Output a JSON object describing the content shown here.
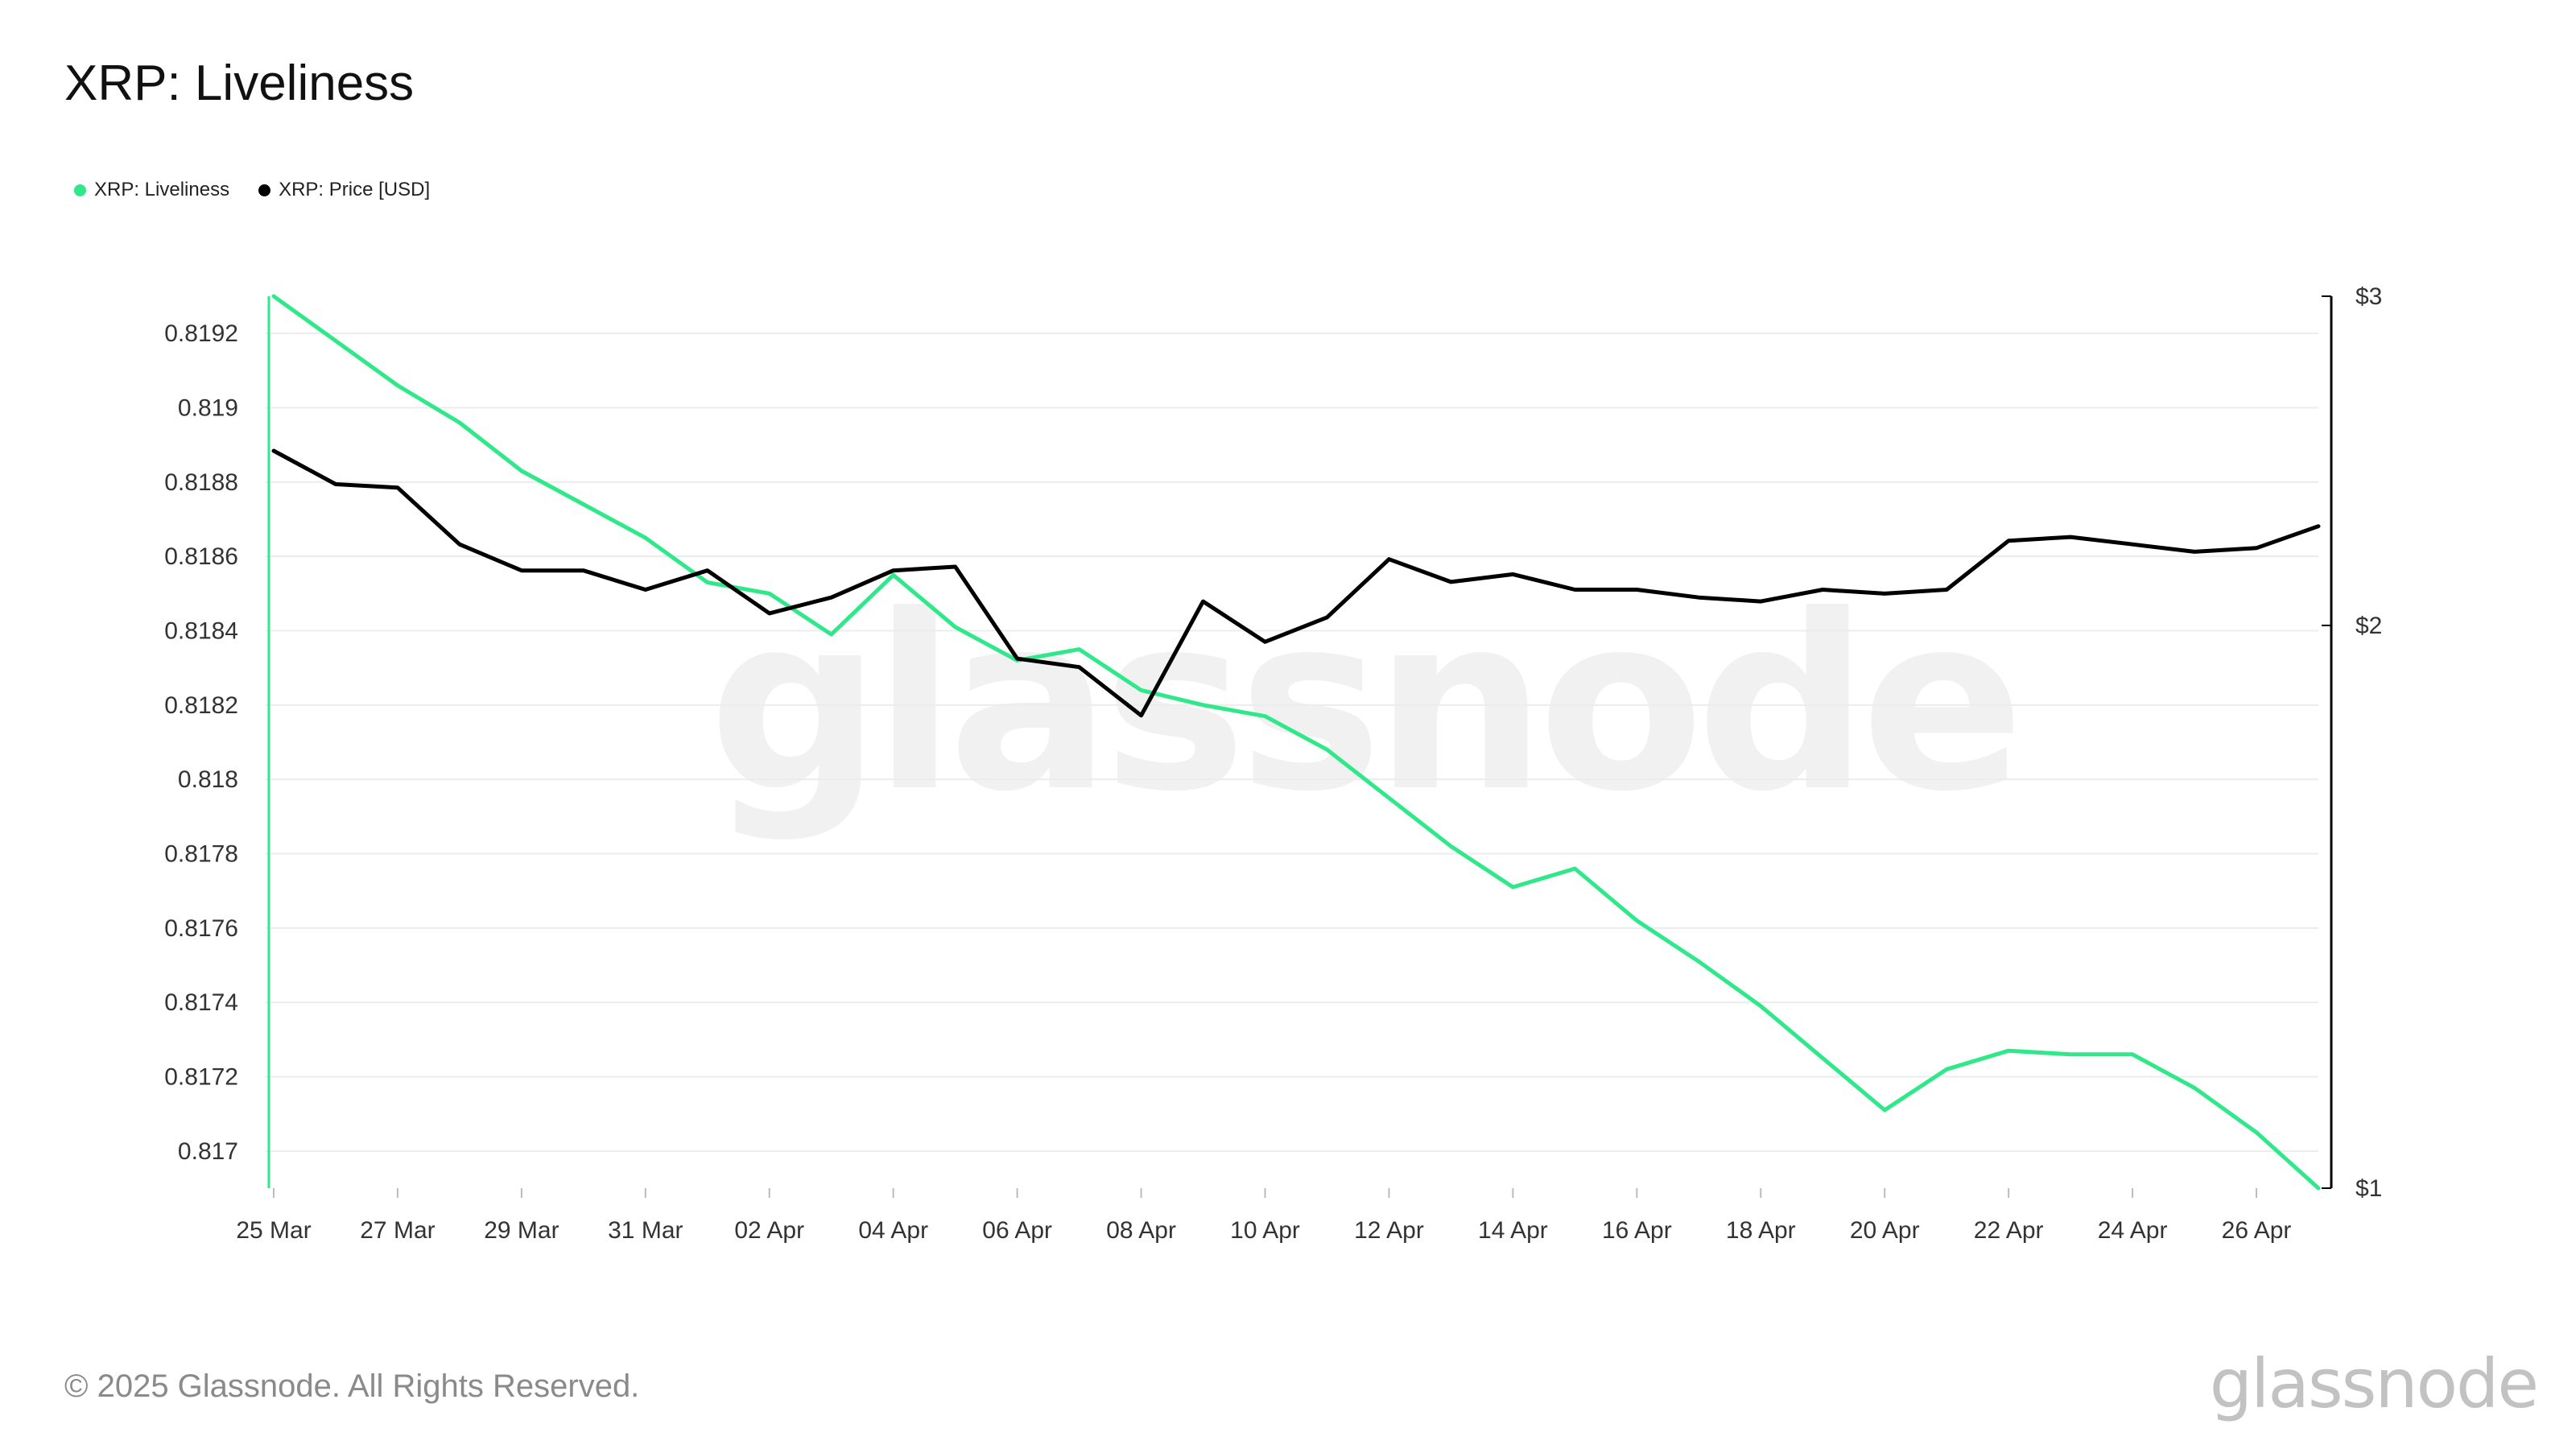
{
  "page": {
    "title": "XRP: Liveliness",
    "copyright": "© 2025 Glassnode. All Rights Reserved.",
    "brand": "glassnode",
    "watermark": "glassnode"
  },
  "colors": {
    "liveliness": "#2ee889",
    "price": "#000000",
    "grid": "#ececec"
  },
  "chart_data": {
    "type": "line",
    "title": "XRP: Liveliness",
    "legend_position": "top-left",
    "grid": true,
    "x": [
      "25 Mar",
      "26 Mar",
      "27 Mar",
      "28 Mar",
      "29 Mar",
      "30 Mar",
      "31 Mar",
      "01 Apr",
      "02 Apr",
      "03 Apr",
      "04 Apr",
      "05 Apr",
      "06 Apr",
      "07 Apr",
      "08 Apr",
      "09 Apr",
      "10 Apr",
      "11 Apr",
      "12 Apr",
      "13 Apr",
      "14 Apr",
      "15 Apr",
      "16 Apr",
      "17 Apr",
      "18 Apr",
      "19 Apr",
      "20 Apr",
      "21 Apr",
      "22 Apr",
      "23 Apr",
      "24 Apr",
      "25 Apr",
      "26 Apr",
      "27 Apr"
    ],
    "x_tick_labels": [
      "25 Mar",
      "27 Mar",
      "29 Mar",
      "31 Mar",
      "02 Apr",
      "04 Apr",
      "06 Apr",
      "08 Apr",
      "10 Apr",
      "12 Apr",
      "14 Apr",
      "16 Apr",
      "18 Apr",
      "20 Apr",
      "22 Apr",
      "24 Apr",
      "26 Apr"
    ],
    "y_left": {
      "ticks": [
        "0.8192",
        "0.819",
        "0.8188",
        "0.8186",
        "0.8184",
        "0.8182",
        "0.818",
        "0.8178",
        "0.8176",
        "0.8174",
        "0.8172",
        "0.817"
      ],
      "range": [
        0.8169,
        0.8193
      ]
    },
    "y_right": {
      "ticks": [
        "$3",
        "$2",
        "$1"
      ],
      "scale": "log",
      "range": [
        1,
        3
      ]
    },
    "series": [
      {
        "name": "XRP: Liveliness",
        "axis": "left",
        "values": [
          0.8193,
          0.81918,
          0.81906,
          0.81896,
          0.81883,
          0.81874,
          0.81865,
          0.81853,
          0.8185,
          0.81839,
          0.81855,
          0.81841,
          0.81832,
          0.81835,
          0.81824,
          0.8182,
          0.81817,
          0.81808,
          0.81795,
          0.81782,
          0.81771,
          0.81776,
          0.81762,
          0.81751,
          0.81739,
          0.81725,
          0.81711,
          0.81722,
          0.81727,
          0.81726,
          0.81726,
          0.81717,
          0.81705,
          0.8169
        ]
      },
      {
        "name": "XRP: Price [USD]",
        "axis": "right",
        "values": [
          2.48,
          2.38,
          2.37,
          2.21,
          2.14,
          2.14,
          2.09,
          2.14,
          2.03,
          2.07,
          2.14,
          2.15,
          1.92,
          1.9,
          1.79,
          2.06,
          1.96,
          2.02,
          2.17,
          2.11,
          2.13,
          2.09,
          2.09,
          2.07,
          2.06,
          2.09,
          2.08,
          2.09,
          2.22,
          2.23,
          2.21,
          2.19,
          2.2,
          2.26
        ]
      }
    ]
  }
}
